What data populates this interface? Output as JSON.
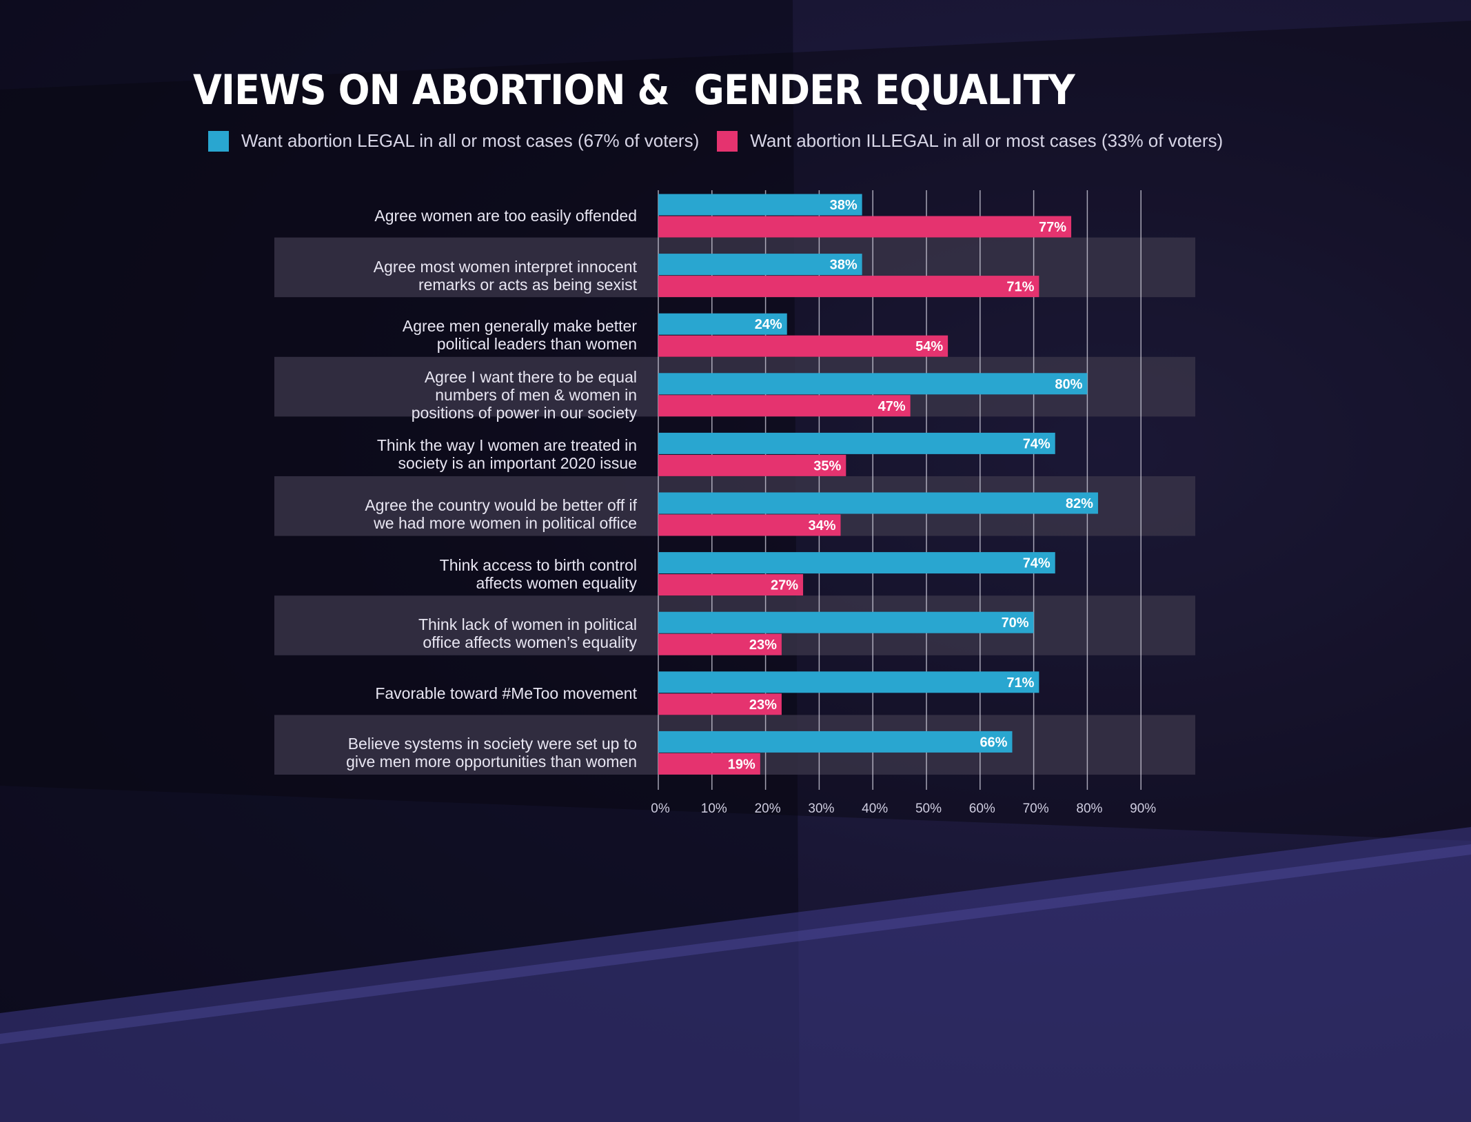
{
  "title": "VIEWS ON ABORTION &  GENDER EQUALITY",
  "colors": {
    "legal": "#29a6d0",
    "illegal": "#e5336f",
    "band": "#3a3548",
    "grid": "#d8d6e4"
  },
  "chart_data": {
    "type": "bar",
    "orientation": "horizontal",
    "categories": [
      "Agree women are too easily offended",
      "Agree most women interpret innocent\nremarks or acts as being sexist",
      "Agree men generally make better\npolitical leaders than women",
      "Agree I want there to be equal\nnumbers of men & women in\npositions of power in our society",
      "Think the way I women are treated in\nsociety is an important 2020 issue",
      "Agree the country would be better off if\nwe had more women in political office",
      "Think access to birth control\naffects women equality",
      "Think lack of women in political\noffice affects women’s equality",
      "Favorable toward #MeToo movement",
      "Believe systems in society were set up to\ngive men more opportunities than women"
    ],
    "series": [
      {
        "name": "Want abortion LEGAL in all or most cases (67% of voters)",
        "values": [
          38,
          38,
          24,
          80,
          74,
          82,
          74,
          70,
          71,
          66
        ],
        "labels": [
          "38%",
          "38%",
          "24%",
          "80%",
          "74%",
          "82%",
          "74%",
          "70%",
          "71%",
          "66%"
        ]
      },
      {
        "name": "Want abortion ILLEGAL in all or most cases (33% of voters)",
        "values": [
          77,
          71,
          54,
          47,
          35,
          34,
          27,
          23,
          23,
          19
        ],
        "labels": [
          "77%",
          "71%",
          "54%",
          "47%",
          "35%",
          "34%",
          "27%",
          "23%",
          "23%",
          "19%"
        ]
      }
    ],
    "xlim": [
      0,
      100
    ],
    "xticks": [
      "0%",
      "10%",
      "20%",
      "30%",
      "40%",
      "50%",
      "60%",
      "70%",
      "80%",
      "90%"
    ],
    "grid": true,
    "legend": "top"
  }
}
